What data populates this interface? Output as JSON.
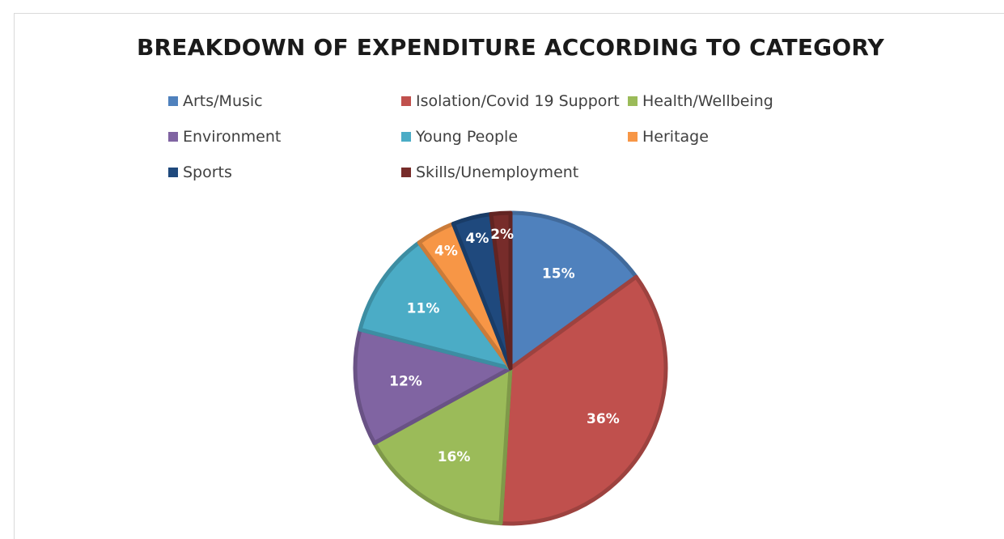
{
  "chart_data": {
    "type": "pie",
    "title": "BREAKDOWN OF EXPENDITURE ACCORDING TO CATEGORY",
    "legend_position": "top",
    "slices": [
      {
        "label": "Arts/Music",
        "value": 15,
        "display": "15%",
        "color": "#4f81bd"
      },
      {
        "label": "Isolation/Covid 19 Support",
        "value": 36,
        "display": "36%",
        "color": "#c0504d"
      },
      {
        "label": "Health/Wellbeing",
        "value": 16,
        "display": "16%",
        "color": "#9bbb59"
      },
      {
        "label": "Environment",
        "value": 12,
        "display": "12%",
        "color": "#8064a2"
      },
      {
        "label": "Young People",
        "value": 11,
        "display": "11%",
        "color": "#4bacc6"
      },
      {
        "label": "Heritage",
        "value": 4,
        "display": "4%",
        "color": "#f79646"
      },
      {
        "label": "Sports",
        "value": 4,
        "display": "4%",
        "color": "#1f497d"
      },
      {
        "label": "Skills/Unemployment",
        "value": 2,
        "display": "2%",
        "color": "#772c2a"
      }
    ]
  }
}
